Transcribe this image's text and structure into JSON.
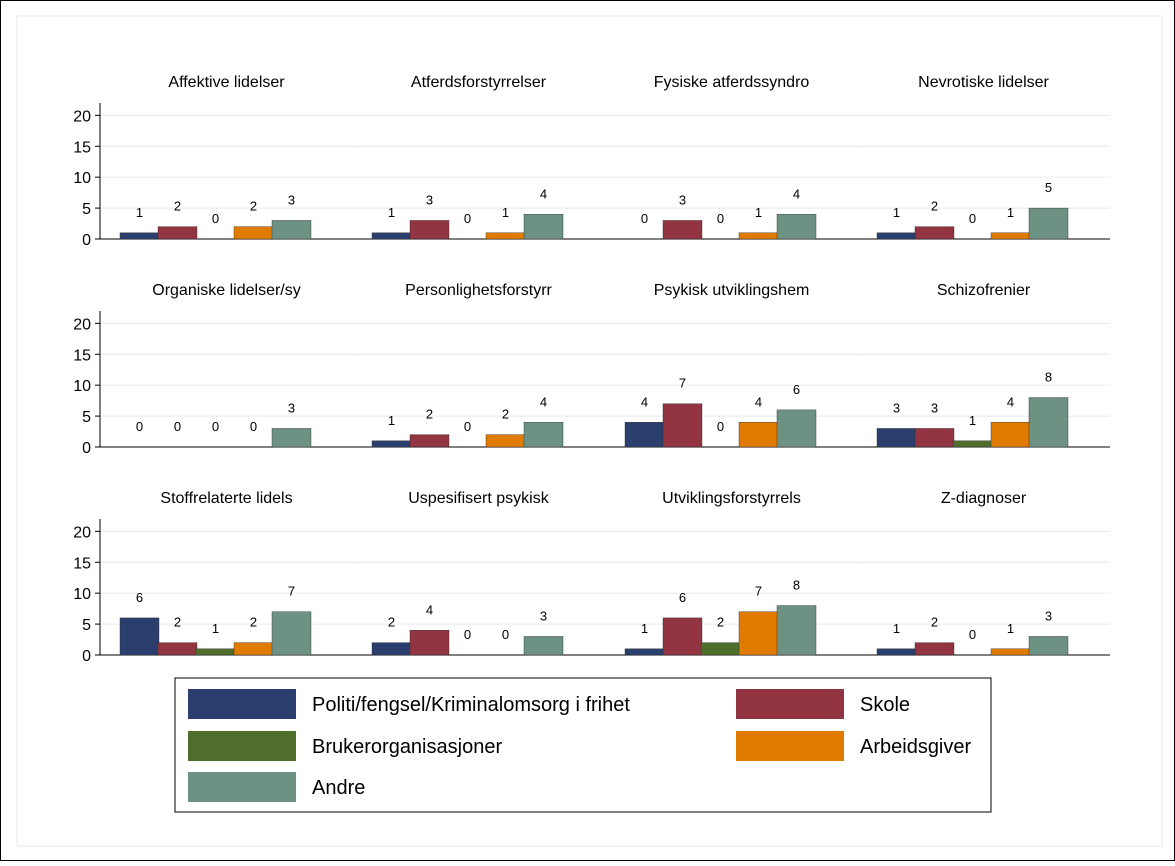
{
  "colors": {
    "politi": "#2b3f6e",
    "skole": "#923442",
    "bruker": "#4f6d2b",
    "arbeid": "#e07b00",
    "andre": "#6d9283",
    "grid": "#e5ebee",
    "axis": "#000000",
    "border": "#000000"
  },
  "chart_data": {
    "type": "bar",
    "ylim": [
      0,
      22
    ],
    "yticks": [
      0,
      5,
      10,
      15,
      20
    ],
    "grid": true,
    "legend_position": "bottom",
    "series": [
      {
        "key": "politi",
        "name": "Politi/fengsel/Kriminalomsorg i frihet"
      },
      {
        "key": "skole",
        "name": "Skole"
      },
      {
        "key": "bruker",
        "name": "Brukerorganisasjoner"
      },
      {
        "key": "arbeid",
        "name": "Arbeidsgiver"
      },
      {
        "key": "andre",
        "name": "Andre"
      }
    ],
    "panels": [
      {
        "title": "Affektive lidelser",
        "values": [
          1,
          2,
          0,
          2,
          3
        ]
      },
      {
        "title": "Atferdsforstyrrelser",
        "values": [
          1,
          3,
          0,
          1,
          4
        ]
      },
      {
        "title": "Fysiske atferdssyndro",
        "values": [
          0,
          3,
          0,
          1,
          4
        ]
      },
      {
        "title": "Nevrotiske lidelser",
        "values": [
          1,
          2,
          0,
          1,
          5
        ]
      },
      {
        "title": "Organiske lidelser/sy",
        "values": [
          0,
          0,
          0,
          0,
          3
        ]
      },
      {
        "title": "Personlighetsforstyrr",
        "values": [
          1,
          2,
          0,
          2,
          4
        ]
      },
      {
        "title": "Psykisk utviklingshem",
        "values": [
          4,
          7,
          0,
          4,
          6
        ]
      },
      {
        "title": "Schizofrenier",
        "values": [
          3,
          3,
          1,
          4,
          8
        ]
      },
      {
        "title": "Stoffrelaterte lidels",
        "values": [
          6,
          2,
          1,
          2,
          7
        ]
      },
      {
        "title": "Uspesifisert psykisk",
        "values": [
          2,
          4,
          0,
          0,
          3
        ]
      },
      {
        "title": "Utviklingsforstyrrels",
        "values": [
          1,
          6,
          2,
          7,
          8
        ]
      },
      {
        "title": "Z-diagnoser",
        "values": [
          1,
          2,
          0,
          1,
          3
        ]
      }
    ]
  }
}
